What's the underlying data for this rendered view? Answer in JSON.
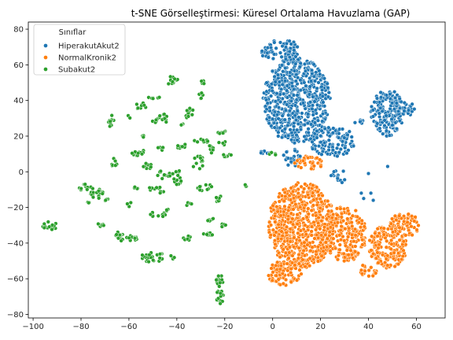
{
  "chart_data": {
    "type": "scatter",
    "title": "t-SNE Görselleştirmesi: Küresel Ortalama Havuzlama (GAP)",
    "xlabel": "",
    "ylabel": "",
    "xlim": [
      -102,
      72
    ],
    "ylim": [
      -82,
      84
    ],
    "xticks": [
      -100,
      -80,
      -60,
      -40,
      -20,
      0,
      20,
      40,
      60
    ],
    "yticks": [
      -80,
      -60,
      -40,
      -20,
      0,
      20,
      40,
      60,
      80
    ],
    "grid": false,
    "legend": {
      "title": "Sınıflar",
      "placement": "top-left"
    },
    "series": [
      {
        "name": "HiperakutAkut2",
        "color": "#1f77b4",
        "clusters": [
          {
            "cx": 10,
            "cy": 40,
            "rx": 14,
            "ry": 24,
            "n": 600
          },
          {
            "cx": 3,
            "cy": 68,
            "rx": 8,
            "ry": 7,
            "n": 70
          },
          {
            "cx": 25,
            "cy": 17,
            "rx": 10,
            "ry": 9,
            "n": 110
          },
          {
            "cx": 48,
            "cy": 33,
            "rx": 7,
            "ry": 13,
            "n": 170
          },
          {
            "cx": 55,
            "cy": 35,
            "rx": 5,
            "ry": 4,
            "n": 25
          },
          {
            "cx": 8,
            "cy": 8,
            "rx": 4,
            "ry": 5,
            "n": 25
          },
          {
            "cx": 28,
            "cy": -3,
            "rx": 4,
            "ry": 4,
            "n": 15
          },
          {
            "cx": -3,
            "cy": 11,
            "rx": 2,
            "ry": 1.5,
            "n": 8
          },
          {
            "cx": 36,
            "cy": 28,
            "rx": 2,
            "ry": 2,
            "n": 6
          }
        ],
        "points": [
          [
            38,
            -15
          ],
          [
            42,
            -16
          ],
          [
            37,
            -12
          ],
          [
            41,
            -12
          ],
          [
            40,
            -1
          ],
          [
            48,
            3
          ]
        ]
      },
      {
        "name": "NormalKronik2",
        "color": "#ff7f0e",
        "clusters": [
          {
            "cx": 12,
            "cy": -30,
            "rx": 14,
            "ry": 24,
            "n": 650
          },
          {
            "cx": 5,
            "cy": -57,
            "rx": 7,
            "ry": 7,
            "n": 90
          },
          {
            "cx": 30,
            "cy": -35,
            "rx": 9,
            "ry": 16,
            "n": 220
          },
          {
            "cx": 48,
            "cy": -42,
            "rx": 8,
            "ry": 12,
            "n": 180
          },
          {
            "cx": 55,
            "cy": -30,
            "rx": 6,
            "ry": 7,
            "n": 80
          },
          {
            "cx": 40,
            "cy": -55,
            "rx": 4,
            "ry": 4,
            "n": 20
          },
          {
            "cx": 15,
            "cy": 5,
            "rx": 6,
            "ry": 4,
            "n": 40
          }
        ],
        "points": []
      },
      {
        "name": "Subakut2",
        "color": "#2ca02c",
        "clusters": [
          {
            "cx": -93,
            "cy": -30,
            "rx": 3.5,
            "ry": 2.5,
            "n": 18
          },
          {
            "cx": -78,
            "cy": -9,
            "rx": 3,
            "ry": 2,
            "n": 14
          },
          {
            "cx": -73,
            "cy": -12,
            "rx": 3,
            "ry": 3,
            "n": 18
          },
          {
            "cx": -69,
            "cy": -16,
            "rx": 1.5,
            "ry": 1,
            "n": 4
          },
          {
            "cx": -72,
            "cy": -30,
            "rx": 1.5,
            "ry": 1.5,
            "n": 6
          },
          {
            "cx": -67,
            "cy": 28,
            "rx": 1.5,
            "ry": 4,
            "n": 12
          },
          {
            "cx": -66,
            "cy": 5,
            "rx": 1.2,
            "ry": 3,
            "n": 8
          },
          {
            "cx": -61,
            "cy": -37,
            "rx": 5,
            "ry": 2,
            "n": 18
          },
          {
            "cx": -60,
            "cy": 31,
            "rx": 0.8,
            "ry": 1,
            "n": 3
          },
          {
            "cx": -56,
            "cy": 11,
            "rx": 3,
            "ry": 2,
            "n": 12
          },
          {
            "cx": -55,
            "cy": 37,
            "rx": 2.5,
            "ry": 2,
            "n": 10
          },
          {
            "cx": -52,
            "cy": 3,
            "rx": 2,
            "ry": 2,
            "n": 8
          },
          {
            "cx": -50,
            "cy": 42,
            "rx": 3,
            "ry": 1,
            "n": 8
          },
          {
            "cx": -47,
            "cy": 30,
            "rx": 4,
            "ry": 3,
            "n": 16
          },
          {
            "cx": -48,
            "cy": -24,
            "rx": 4,
            "ry": 1.5,
            "n": 12
          },
          {
            "cx": -50,
            "cy": -48,
            "rx": 5,
            "ry": 3,
            "n": 25
          },
          {
            "cx": -47,
            "cy": 13,
            "rx": 2,
            "ry": 1,
            "n": 5
          },
          {
            "cx": -45,
            "cy": -2,
            "rx": 3,
            "ry": 3,
            "n": 12
          },
          {
            "cx": -48,
            "cy": -10,
            "rx": 4,
            "ry": 2,
            "n": 12
          },
          {
            "cx": -42,
            "cy": 51,
            "rx": 2.5,
            "ry": 2.5,
            "n": 10
          },
          {
            "cx": -40,
            "cy": -3,
            "rx": 2,
            "ry": 6,
            "n": 16
          },
          {
            "cx": -38,
            "cy": 14,
            "rx": 2,
            "ry": 2,
            "n": 8
          },
          {
            "cx": -35,
            "cy": 33,
            "rx": 2,
            "ry": 3,
            "n": 10
          },
          {
            "cx": -35,
            "cy": -37,
            "rx": 2.5,
            "ry": 1.5,
            "n": 8
          },
          {
            "cx": -31,
            "cy": 5,
            "rx": 2.5,
            "ry": 4,
            "n": 14
          },
          {
            "cx": -30,
            "cy": 17,
            "rx": 3,
            "ry": 1.5,
            "n": 10
          },
          {
            "cx": -30,
            "cy": 43,
            "rx": 1,
            "ry": 2,
            "n": 5
          },
          {
            "cx": -29,
            "cy": 50,
            "rx": 1.5,
            "ry": 1,
            "n": 5
          },
          {
            "cx": -28,
            "cy": -9,
            "rx": 4,
            "ry": 2,
            "n": 12
          },
          {
            "cx": -27,
            "cy": -35,
            "rx": 2,
            "ry": 1.5,
            "n": 8
          },
          {
            "cx": -26,
            "cy": 12,
            "rx": 1.5,
            "ry": 3,
            "n": 8
          },
          {
            "cx": -26,
            "cy": -27,
            "rx": 2,
            "ry": 1,
            "n": 5
          },
          {
            "cx": -23,
            "cy": -15,
            "rx": 2,
            "ry": 2,
            "n": 8
          },
          {
            "cx": -21,
            "cy": 22,
            "rx": 2.5,
            "ry": 1,
            "n": 8
          },
          {
            "cx": -21,
            "cy": 16,
            "rx": 1.5,
            "ry": 1.5,
            "n": 5
          },
          {
            "cx": -19,
            "cy": 9,
            "rx": 2,
            "ry": 1,
            "n": 6
          },
          {
            "cx": -20,
            "cy": -30,
            "rx": 2,
            "ry": 1,
            "n": 5
          },
          {
            "cx": -22,
            "cy": -61,
            "rx": 1.5,
            "ry": 4,
            "n": 14
          },
          {
            "cx": -22,
            "cy": -70,
            "rx": 1.5,
            "ry": 4,
            "n": 14
          },
          {
            "cx": -12,
            "cy": -8,
            "rx": 1.5,
            "ry": 1,
            "n": 4
          },
          {
            "cx": -44,
            "cy": -22,
            "rx": 1,
            "ry": 1,
            "n": 3
          },
          {
            "cx": -65,
            "cy": -35,
            "rx": 1.5,
            "ry": 1.5,
            "n": 5
          },
          {
            "cx": -54,
            "cy": 20,
            "rx": 1,
            "ry": 1,
            "n": 3
          },
          {
            "cx": -57,
            "cy": -8,
            "rx": 1,
            "ry": 2,
            "n": 4
          },
          {
            "cx": -60,
            "cy": -18,
            "rx": 1,
            "ry": 1.5,
            "n": 4
          },
          {
            "cx": -38,
            "cy": 26,
            "rx": 1,
            "ry": 1,
            "n": 3
          },
          {
            "cx": -35,
            "cy": -18,
            "rx": 1.5,
            "ry": 1,
            "n": 4
          },
          {
            "cx": -77,
            "cy": -18,
            "rx": 1,
            "ry": 1,
            "n": 3
          },
          {
            "cx": -42,
            "cy": -48,
            "rx": 1,
            "ry": 1,
            "n": 3
          },
          {
            "cx": 0,
            "cy": 10,
            "rx": 1.5,
            "ry": 1,
            "n": 4
          }
        ],
        "points": []
      }
    ]
  }
}
